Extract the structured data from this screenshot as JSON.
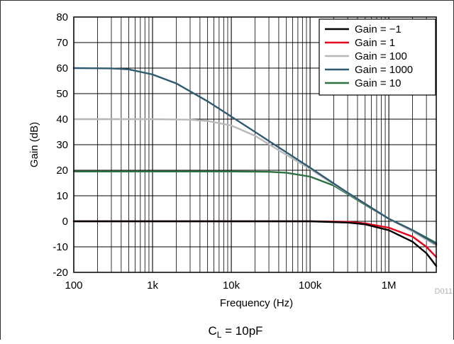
{
  "chart_data": {
    "type": "line",
    "xlabel": "Frequency (Hz)",
    "ylabel": "Gain (dB)",
    "x_scale": "log",
    "xlim": [
      100,
      4000000
    ],
    "ylim": [
      -20,
      80
    ],
    "x_ticks": [
      {
        "value": 100,
        "label": "100"
      },
      {
        "value": 1000,
        "label": "1k"
      },
      {
        "value": 10000,
        "label": "10k"
      },
      {
        "value": 100000,
        "label": "100k"
      },
      {
        "value": 1000000,
        "label": "1M"
      }
    ],
    "y_ticks": [
      -20,
      -10,
      0,
      10,
      20,
      30,
      40,
      50,
      60,
      70,
      80
    ],
    "grid": true,
    "legend_position": "top-right",
    "caption_main": "C",
    "caption_sub": "L",
    "caption_rest": " = 10pF",
    "figure_code": "D011",
    "series": [
      {
        "name": "Gain = −1",
        "color": "#000000",
        "x": [
          100,
          1000,
          10000,
          100000,
          300000,
          500000,
          1000000,
          2000000,
          3000000,
          4000000
        ],
        "y": [
          0,
          0,
          0,
          0,
          -0.5,
          -1.2,
          -3.5,
          -8,
          -12.5,
          -17.5
        ]
      },
      {
        "name": "Gain = 1",
        "color": "#e3001b",
        "x": [
          100,
          1000,
          10000,
          100000,
          300000,
          500000,
          1000000,
          2000000,
          3000000,
          4000000
        ],
        "y": [
          0,
          0,
          0,
          0,
          -0.2,
          -0.8,
          -2.5,
          -6,
          -10,
          -14
        ]
      },
      {
        "name": "Gain = 100",
        "color": "#b8b8b8",
        "x": [
          100,
          1000,
          3000,
          5000,
          10000,
          20000,
          50000,
          100000,
          300000,
          1000000,
          2000000,
          4000000
        ],
        "y": [
          40,
          40,
          39.8,
          39.3,
          37.5,
          33.5,
          26,
          20.5,
          11,
          1,
          -4,
          -9.5
        ]
      },
      {
        "name": "Gain = 1000",
        "color": "#2e5a72",
        "x": [
          100,
          300,
          500,
          1000,
          2000,
          5000,
          10000,
          20000,
          50000,
          100000,
          300000,
          1000000,
          2000000,
          4000000
        ],
        "y": [
          60,
          59.9,
          59.5,
          57.5,
          54,
          47,
          41,
          35,
          27,
          21,
          11.2,
          1,
          -3.5,
          -9
        ]
      },
      {
        "name": "Gain = 10",
        "color": "#2f7040",
        "x": [
          100,
          1000,
          10000,
          30000,
          50000,
          100000,
          200000,
          500000,
          1000000,
          2000000,
          4000000
        ],
        "y": [
          19.5,
          19.5,
          19.5,
          19.4,
          19,
          17.5,
          14,
          6.5,
          1,
          -3.5,
          -8.5
        ]
      }
    ]
  }
}
